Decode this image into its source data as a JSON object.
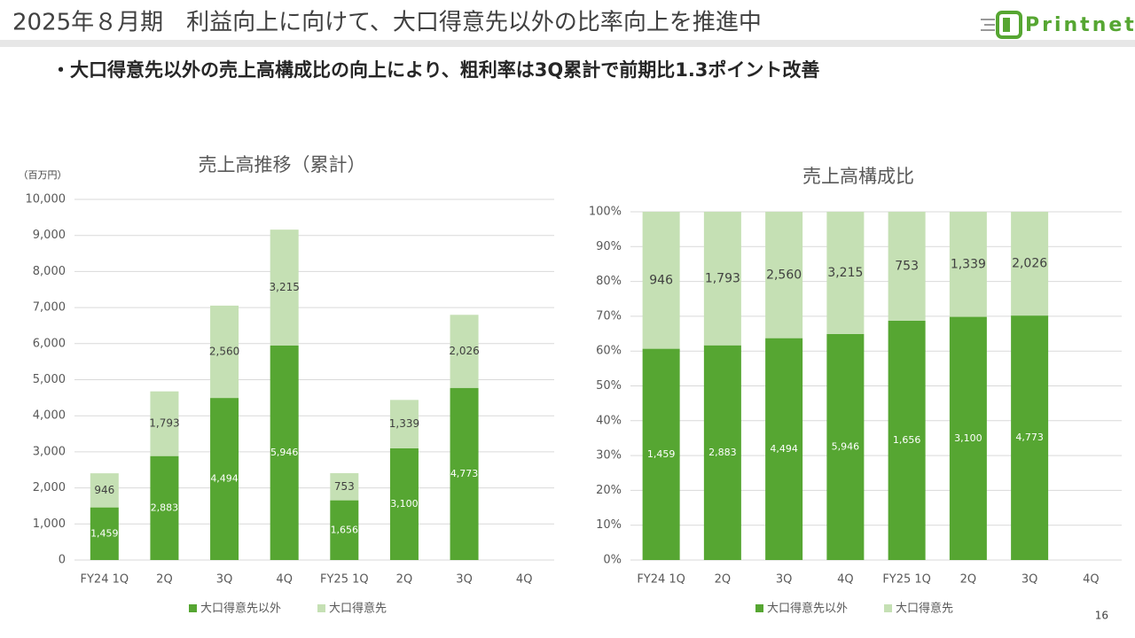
{
  "header": {
    "title": "2025年８月期　利益向上に向けて、大口得意先以外の比率向上を推進中",
    "bullet": "・大口得意先以外の売上高構成比の向上により、粗利率は3Q累計で前期比1.3ポイント改善",
    "logo": "Printnet",
    "page": "16"
  },
  "chart_data": [
    {
      "type": "bar",
      "stacking": "normal",
      "title": "売上高推移（累計）",
      "y_label": "（百万円）",
      "categories": [
        "FY24 1Q",
        "2Q",
        "3Q",
        "4Q",
        "FY25 1Q",
        "2Q",
        "3Q",
        "4Q"
      ],
      "series": [
        {
          "name": "大口得意先以外",
          "color": "#56a632",
          "values": [
            1459,
            2883,
            4494,
            5946,
            1656,
            3100,
            4773,
            null
          ],
          "value_labels": [
            "1,459",
            "2,883",
            "4,494",
            "5,946",
            "1,656",
            "3,100",
            "4,773",
            null
          ]
        },
        {
          "name": "大口得意先",
          "color": "#c5e0b4",
          "values": [
            946,
            1793,
            2560,
            3215,
            753,
            1339,
            2026,
            null
          ],
          "value_labels": [
            "946",
            "1,793",
            "2,560",
            "3,215",
            "753",
            "1,339",
            "2,026",
            null
          ]
        }
      ],
      "ylim": [
        0,
        10000
      ],
      "yticks": [
        0,
        {
          "value": 1000,
          "label": "1,000"
        },
        {
          "value": 2000,
          "label": "2,000"
        },
        {
          "value": 3000,
          "label": "3,000"
        },
        {
          "value": 4000,
          "label": "4,000"
        },
        {
          "value": 5000,
          "label": "5,000"
        },
        {
          "value": 6000,
          "label": "6,000"
        },
        {
          "value": 7000,
          "label": "7,000"
        },
        {
          "value": 8000,
          "label": "8,000"
        },
        {
          "value": 9000,
          "label": "9,000"
        },
        {
          "value": 10000,
          "label": "10,000"
        }
      ],
      "grid": true
    },
    {
      "type": "bar",
      "stacking": "percent",
      "title": "売上高構成比",
      "categories": [
        "FY24 1Q",
        "2Q",
        "3Q",
        "4Q",
        "FY25 1Q",
        "2Q",
        "3Q",
        "4Q"
      ],
      "series": [
        {
          "name": "大口得意先以外",
          "color": "#56a632",
          "values": [
            1459,
            2883,
            4494,
            5946,
            1656,
            3100,
            4773,
            null
          ],
          "value_labels": [
            "1,459",
            "2,883",
            "4,494",
            "5,946",
            "1,656",
            "3,100",
            "4,773",
            null
          ]
        },
        {
          "name": "大口得意先",
          "color": "#c5e0b4",
          "values": [
            946,
            1793,
            2560,
            3215,
            753,
            1339,
            2026,
            null
          ],
          "value_labels": [
            "946",
            "1,793",
            "2,560",
            "3,215",
            "753",
            "1,339",
            "2,026",
            null
          ]
        }
      ],
      "ylim": [
        0,
        100
      ],
      "yticks": [
        {
          "value": 0,
          "label": "0%"
        },
        {
          "value": 10,
          "label": "10%"
        },
        {
          "value": 20,
          "label": "20%"
        },
        {
          "value": 30,
          "label": "30%"
        },
        {
          "value": 40,
          "label": "40%"
        },
        {
          "value": 50,
          "label": "50%"
        },
        {
          "value": 60,
          "label": "60%"
        },
        {
          "value": 70,
          "label": "70%"
        },
        {
          "value": 80,
          "label": "80%"
        },
        {
          "value": 90,
          "label": "90%"
        },
        {
          "value": 100,
          "label": "100%"
        }
      ],
      "grid": true
    }
  ]
}
